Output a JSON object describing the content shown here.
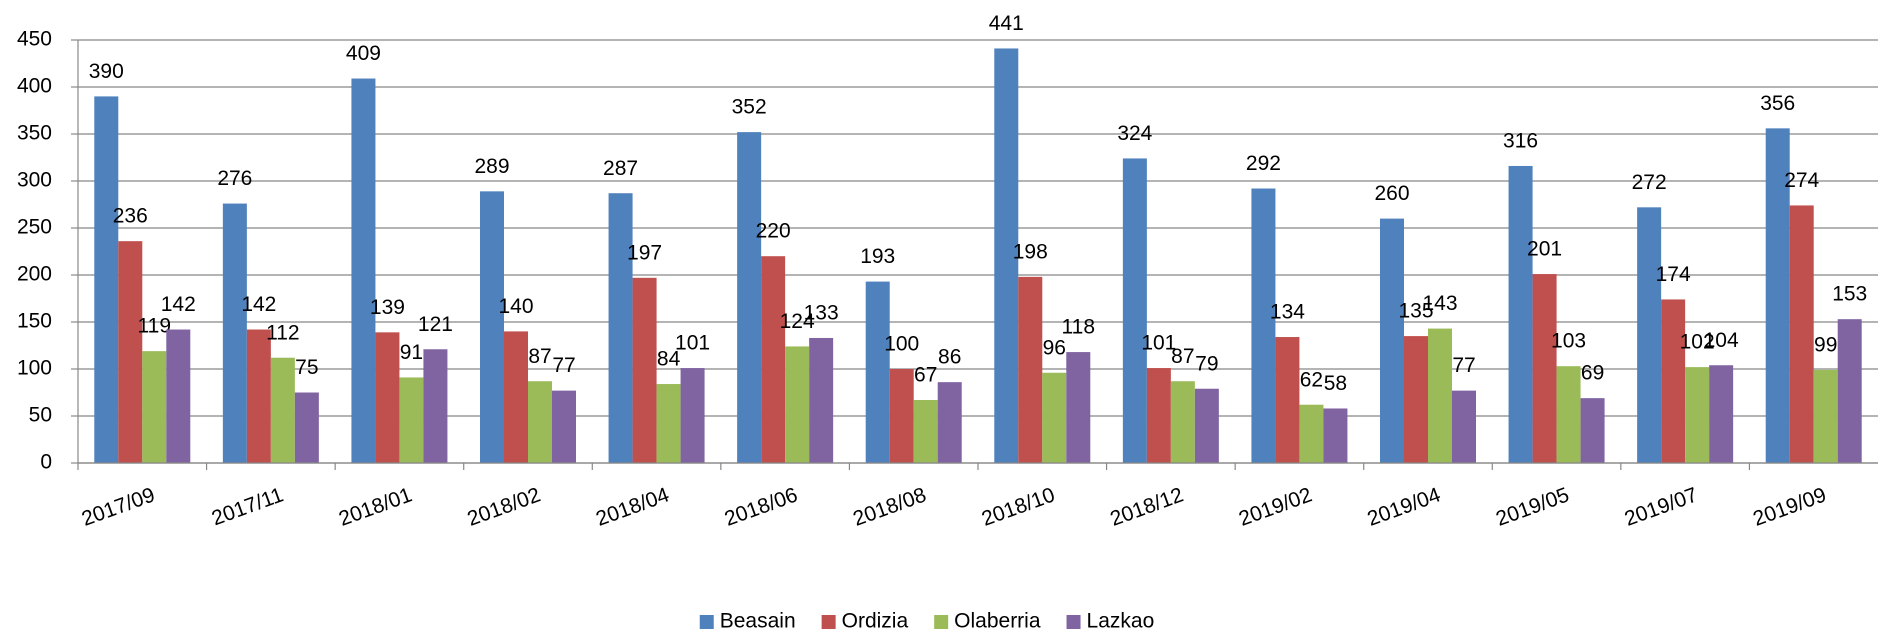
{
  "chart_data": {
    "type": "bar",
    "categories": [
      "2017/09",
      "2017/11",
      "2018/01",
      "2018/02",
      "2018/04",
      "2018/06",
      "2018/08",
      "2018/10",
      "2018/12",
      "2019/02",
      "2019/04",
      "2019/05",
      "2019/07",
      "2019/09"
    ],
    "series": [
      {
        "name": "Beasain",
        "color": "#4f81bd",
        "values": [
          390,
          276,
          409,
          289,
          287,
          352,
          193,
          441,
          324,
          292,
          260,
          316,
          272,
          356
        ]
      },
      {
        "name": "Ordizia",
        "color": "#c0504d",
        "values": [
          236,
          142,
          139,
          140,
          197,
          220,
          100,
          198,
          101,
          134,
          135,
          201,
          174,
          274
        ]
      },
      {
        "name": "Olaberria",
        "color": "#9bbb59",
        "values": [
          119,
          112,
          91,
          87,
          84,
          124,
          67,
          96,
          87,
          62,
          143,
          103,
          102,
          99
        ]
      },
      {
        "name": "Lazkao",
        "color": "#8064a2",
        "values": [
          142,
          75,
          121,
          77,
          101,
          133,
          86,
          118,
          79,
          58,
          77,
          69,
          104,
          153
        ]
      }
    ],
    "ylim": [
      0,
      450
    ],
    "yticks": [
      0,
      50,
      100,
      150,
      200,
      250,
      300,
      350,
      400,
      450
    ],
    "grid": true,
    "legend": "bottom"
  }
}
